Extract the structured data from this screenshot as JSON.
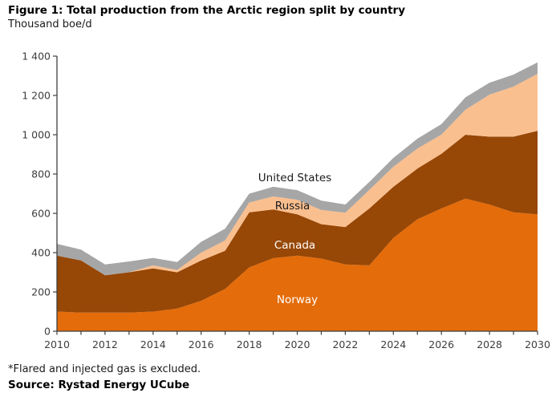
{
  "header": {
    "title": "Figure 1: Total production from the Arctic region split by country",
    "subtitle": "Thousand boe/d"
  },
  "footer": {
    "footnote": "*Flared and injected gas is excluded.",
    "source": "Source: Rystad Energy UCube"
  },
  "chart_data": {
    "type": "area",
    "stacked": true,
    "title": "Figure 1: Total production from the Arctic region split by country",
    "unit_label": "Thousand boe/d",
    "grid": false,
    "legend": "in-plot-labels",
    "ylim": [
      0,
      1400
    ],
    "ytick_step": 200,
    "xtick_label_step": 2,
    "axis_color": "#404040",
    "tick_label_color": "#3d3d3d",
    "x": [
      2010,
      2011,
      2012,
      2013,
      2014,
      2015,
      2016,
      2017,
      2018,
      2019,
      2020,
      2021,
      2022,
      2023,
      2024,
      2025,
      2026,
      2027,
      2028,
      2029,
      2030
    ],
    "series": [
      {
        "name": "Norway",
        "color": "#E46C0A",
        "values": [
          100,
          95,
          95,
          95,
          100,
          115,
          155,
          215,
          325,
          372,
          385,
          370,
          340,
          335,
          475,
          570,
          625,
          675,
          645,
          605,
          595
        ]
      },
      {
        "name": "Canada",
        "color": "#974706",
        "values": [
          285,
          265,
          190,
          205,
          220,
          185,
          205,
          195,
          280,
          248,
          210,
          175,
          190,
          290,
          260,
          258,
          278,
          325,
          345,
          385,
          425
        ]
      },
      {
        "name": "Russia",
        "color": "#FABF8F",
        "values": [
          0,
          0,
          0,
          0,
          15,
          12,
          40,
          52,
          50,
          66,
          74,
          72,
          73,
          94,
          102,
          102,
          98,
          127,
          214,
          255,
          290
        ]
      },
      {
        "name": "United States",
        "color": "#A6A6A6",
        "values": [
          60,
          55,
          55,
          55,
          38,
          40,
          55,
          60,
          45,
          49,
          49,
          48,
          42,
          41,
          45,
          50,
          53,
          63,
          61,
          61,
          58
        ]
      }
    ],
    "annotations": [
      {
        "text": "United States",
        "year": 2019.9,
        "value": 784,
        "color": "#1a1a1a"
      },
      {
        "text": "Russia",
        "year": 2019.8,
        "value": 641,
        "color": "#1a1a1a"
      },
      {
        "text": "Canada",
        "year": 2019.9,
        "value": 441,
        "color": "#ffffff"
      },
      {
        "text": "Norway",
        "year": 2020.0,
        "value": 163,
        "color": "#ffffff"
      }
    ]
  }
}
